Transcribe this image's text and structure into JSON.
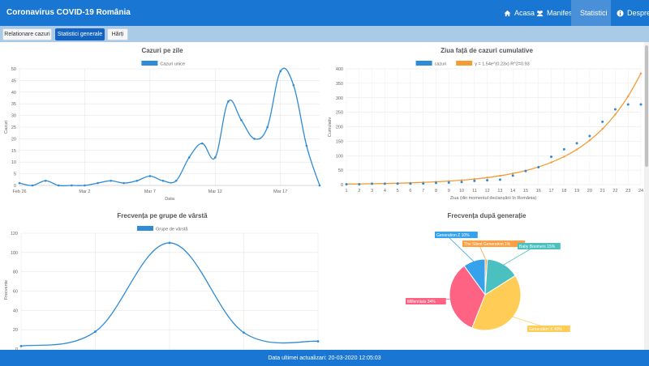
{
  "header": {
    "brand": "Coronavirus COVID-19 România",
    "nav": [
      {
        "label": "Acasa",
        "icon": "home-icon"
      },
      {
        "label": "Manifest",
        "icon": "users-icon"
      },
      {
        "label": "Statistici",
        "icon": "chart-icon"
      },
      {
        "label": "Despre",
        "icon": "info-icon"
      }
    ],
    "active_nav": "Statistici"
  },
  "subnav": {
    "buttons": [
      "Relationare cazuri",
      "Statistici generale",
      "Hărți"
    ],
    "active": "Statistici generale"
  },
  "footer": {
    "text": "Data ultimei actualizari: 20-03-2020 12:05:03"
  },
  "colors": {
    "navbar": "#1976d2",
    "series_blue": "#2e8bd6",
    "series_orange": "#f39c34"
  },
  "chart_data": [
    {
      "type": "line",
      "title": "Cazuri pe zile",
      "xlabel": "Data",
      "ylabel": "Cazuri",
      "x_tick_labels": [
        "Feb 26",
        "Mar 2",
        "Mar 7",
        "Mar 12",
        "Mar 17"
      ],
      "ylim": [
        0,
        50
      ],
      "y_ticks": [
        0,
        5,
        10,
        15,
        20,
        25,
        30,
        35,
        40,
        45,
        50
      ],
      "series": [
        {
          "name": "Cazuri unice",
          "x": [
            "Feb 26",
            "Feb 27",
            "Feb 28",
            "Feb 29",
            "Mar 1",
            "Mar 2",
            "Mar 3",
            "Mar 4",
            "Mar 5",
            "Mar 6",
            "Mar 7",
            "Mar 8",
            "Mar 9",
            "Mar 10",
            "Mar 11",
            "Mar 12",
            "Mar 13",
            "Mar 14",
            "Mar 15",
            "Mar 16",
            "Mar 17",
            "Mar 18",
            "Mar 19",
            "Mar 20"
          ],
          "values": [
            1,
            0,
            2,
            0,
            0,
            0,
            1,
            2,
            1,
            2,
            4,
            2,
            2,
            12,
            18,
            12,
            36,
            28,
            20,
            25,
            49,
            43,
            17,
            0
          ]
        }
      ],
      "grid": true,
      "legend": "top"
    },
    {
      "type": "scatter",
      "title": "Ziua față de cazuri cumulative",
      "xlabel": "Ziua (din momentul declanșării în România)",
      "ylabel": "Cumulativ",
      "x_ticks": [
        1,
        2,
        3,
        4,
        5,
        6,
        7,
        8,
        9,
        10,
        11,
        12,
        13,
        14,
        15,
        16,
        17,
        18,
        19,
        20,
        21,
        22,
        23,
        24
      ],
      "ylim": [
        0,
        400
      ],
      "y_ticks": [
        0,
        50,
        100,
        150,
        200,
        250,
        300,
        350,
        400
      ],
      "series": [
        {
          "name": "cazuri",
          "kind": "points",
          "x": [
            1,
            2,
            3,
            4,
            5,
            6,
            7,
            8,
            9,
            10,
            11,
            12,
            13,
            14,
            15,
            16,
            17,
            18,
            19,
            20,
            21,
            22,
            23,
            24
          ],
          "values": [
            1,
            1,
            3,
            3,
            3,
            3,
            4,
            6,
            7,
            9,
            13,
            15,
            17,
            31,
            47,
            60,
            96,
            122,
            143,
            168,
            217,
            260,
            277,
            277
          ]
        },
        {
          "name": "y = 1.54e^(0.23x)  R^2=0.93",
          "kind": "line",
          "x": [
            1,
            2,
            3,
            4,
            5,
            6,
            7,
            8,
            9,
            10,
            11,
            12,
            13,
            14,
            15,
            16,
            17,
            18,
            19,
            20,
            21,
            22,
            23,
            24
          ],
          "values": [
            1.9,
            2.4,
            3.1,
            3.9,
            4.9,
            6.1,
            7.7,
            9.7,
            12.2,
            15.3,
            19.3,
            24.3,
            30.6,
            38.5,
            48.4,
            61,
            76.7,
            96.6,
            121.6,
            153,
            192.6,
            242.4,
            305.1,
            384
          ]
        }
      ],
      "grid": true,
      "legend": "top"
    },
    {
      "type": "line",
      "title": "Frecvența pe grupe de vârstă",
      "xlabel": "",
      "ylabel": "Frecvente",
      "ylim": [
        0,
        120
      ],
      "y_ticks": [
        0,
        20,
        40,
        60,
        80,
        100,
        120
      ],
      "series": [
        {
          "name": "Grupe de vârstă",
          "x": [
            0,
            1,
            2,
            3,
            4
          ],
          "values": [
            3,
            18,
            110,
            17,
            8
          ]
        }
      ],
      "grid": true,
      "legend": "top"
    },
    {
      "type": "pie",
      "title": "Frecvența după generație",
      "slices": [
        {
          "label": "Generation Z 10%",
          "value": 10,
          "color": "#36a2eb"
        },
        {
          "label": "The Silent Generation 1%",
          "value": 1,
          "color": "#ff9f40"
        },
        {
          "label": "Baby Boomers 15%",
          "value": 15,
          "color": "#4bc0c0"
        },
        {
          "label": "Generation X 40%",
          "value": 40,
          "color": "#ffcd56"
        },
        {
          "label": "Millennials 34%",
          "value": 34,
          "color": "#ff6384"
        }
      ]
    }
  ]
}
